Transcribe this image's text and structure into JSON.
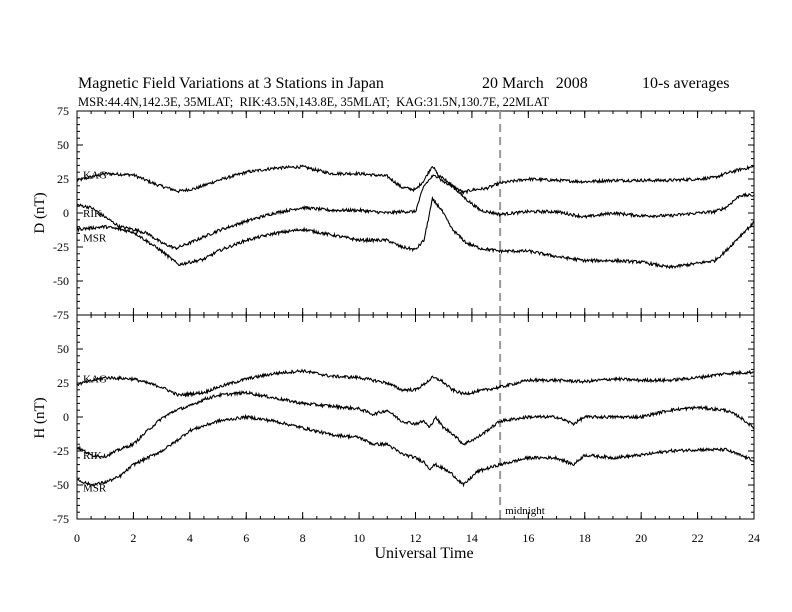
{
  "chart_data": {
    "type": "line",
    "title": "Magnetic Field Variations at 3 Stations in Japan",
    "date": "20 March   2008",
    "averaging": "10-s averages",
    "subtitle": "MSR:44.4N,142.3E, 35MLAT;  RIK:43.5N,143.8E, 35MLAT;  KAG:31.5N,130.7E, 22MLAT",
    "xlabel": "Universal Time",
    "xlim": [
      0,
      24
    ],
    "xticks": [
      0,
      2,
      4,
      6,
      8,
      10,
      12,
      14,
      16,
      18,
      20,
      22,
      24
    ],
    "ylim": [
      -75,
      75
    ],
    "yticks": [
      -75,
      -50,
      -25,
      0,
      25,
      50,
      75
    ],
    "grid": false,
    "vline": {
      "x": 15,
      "style": "dashed",
      "color": "#999999",
      "label": "midnight"
    },
    "panels": [
      {
        "ylabel": "D (nT)",
        "series": [
          {
            "name": "KAG",
            "x": [
              0,
              1,
              2,
              2.8,
              3.6,
              4.2,
              5,
              6,
              7,
              8,
              9,
              10,
              11,
              11.5,
              12,
              12.3,
              12.6,
              12.9,
              13.3,
              13.7,
              14,
              14.5,
              15,
              16,
              17,
              18,
              19,
              20,
              21,
              22,
              22.6,
              23,
              23.5,
              24
            ],
            "y": [
              24,
              29,
              28,
              21,
              16,
              18,
              24,
              30,
              33,
              34,
              29,
              29,
              27,
              19,
              17,
              24,
              35,
              24,
              20,
              15,
              17,
              18,
              22,
              25,
              24,
              23,
              24,
              24,
              24,
              25,
              26,
              29,
              32,
              34
            ]
          },
          {
            "name": "RIK",
            "x": [
              0,
              0.5,
              1,
              1.5,
              2,
              2.5,
              3,
              3.5,
              4,
              5,
              6,
              7,
              8,
              9,
              10,
              11,
              11.5,
              12,
              12.3,
              12.6,
              12.9,
              13.3,
              13.8,
              14.3,
              15,
              16,
              17,
              18,
              19,
              20,
              21,
              22,
              22.6,
              23,
              23.5,
              24
            ],
            "y": [
              6,
              4,
              -3,
              -10,
              -12,
              -15,
              -22,
              -26,
              -22,
              -13,
              -6,
              0,
              4,
              2,
              2,
              0,
              1,
              1,
              20,
              27,
              27,
              20,
              10,
              2,
              -1,
              1,
              1,
              -3,
              0,
              -2,
              -2,
              0,
              1,
              4,
              13,
              13
            ]
          },
          {
            "name": "MSR",
            "x": [
              0,
              1,
              2,
              3,
              3.6,
              4.5,
              5,
              6,
              7,
              8,
              9,
              10,
              11,
              11.5,
              12,
              12.3,
              12.6,
              12.9,
              13.3,
              13.8,
              14.3,
              15,
              16,
              17,
              18,
              19,
              20,
              21,
              22,
              22.6,
              23,
              23.5,
              24
            ],
            "y": [
              -12,
              -10,
              -14,
              -28,
              -38,
              -34,
              -28,
              -20,
              -15,
              -12,
              -16,
              -20,
              -20,
              -25,
              -27,
              -20,
              10,
              3,
              -12,
              -22,
              -26,
              -28,
              -28,
              -32,
              -35,
              -35,
              -36,
              -40,
              -37,
              -35,
              -28,
              -17,
              -7
            ]
          }
        ]
      },
      {
        "ylabel": "H (nT)",
        "series": [
          {
            "name": "KAG",
            "x": [
              0,
              1,
              2,
              3,
              3.6,
              4.5,
              5,
              6,
              7,
              8,
              9,
              10,
              11,
              11.5,
              12,
              12.3,
              12.6,
              12.9,
              13.3,
              13.7,
              14,
              15,
              16,
              17,
              18,
              19,
              20,
              21,
              22,
              23,
              24
            ],
            "y": [
              24,
              29,
              28,
              22,
              16,
              18,
              22,
              28,
              32,
              34,
              30,
              29,
              25,
              20,
              20,
              24,
              29,
              27,
              20,
              17,
              18,
              22,
              27,
              27,
              26,
              28,
              27,
              27,
              29,
              32,
              33
            ]
          },
          {
            "name": "RIK",
            "x": [
              0,
              0.5,
              1,
              1.5,
              2,
              2.5,
              3,
              3.5,
              4,
              4.5,
              5,
              6,
              7,
              8,
              9,
              10,
              10.5,
              11,
              11.5,
              12,
              12.3,
              12.5,
              12.7,
              13,
              13.3,
              13.7,
              14.2,
              15,
              16,
              17,
              17.6,
              18,
              19,
              20,
              21,
              22,
              23,
              23.5,
              24
            ],
            "y": [
              -22,
              -28,
              -29,
              -24,
              -20,
              -10,
              -1,
              5,
              8,
              13,
              16,
              18,
              14,
              10,
              8,
              6,
              2,
              5,
              -3,
              -5,
              -3,
              -8,
              0,
              -8,
              -12,
              -20,
              -15,
              -3,
              0,
              0,
              -5,
              0,
              0,
              0,
              5,
              7,
              5,
              0,
              -8
            ]
          },
          {
            "name": "MSR",
            "x": [
              0,
              0.5,
              1,
              1.5,
              2,
              2.5,
              3,
              3.5,
              4,
              5,
              6,
              7,
              8,
              9,
              10,
              10.5,
              11,
              11.5,
              12,
              12.3,
              12.5,
              12.7,
              13,
              13.3,
              13.7,
              14.2,
              15,
              16,
              17,
              17.6,
              18,
              19,
              20,
              21,
              22,
              23,
              23.5,
              24
            ],
            "y": [
              -46,
              -50,
              -48,
              -44,
              -35,
              -30,
              -25,
              -18,
              -10,
              -3,
              0,
              -3,
              -8,
              -13,
              -15,
              -20,
              -20,
              -27,
              -30,
              -33,
              -38,
              -35,
              -38,
              -42,
              -50,
              -40,
              -35,
              -30,
              -30,
              -35,
              -28,
              -30,
              -28,
              -25,
              -24,
              -24,
              -28,
              -32
            ]
          }
        ]
      }
    ]
  }
}
